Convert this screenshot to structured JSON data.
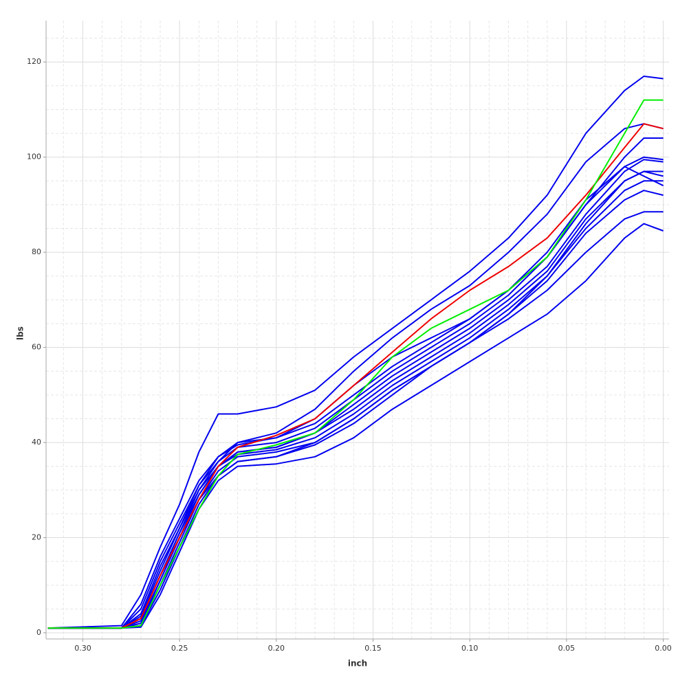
{
  "chart_data": {
    "type": "line",
    "x_label": "inch",
    "y_label": "lbs",
    "xlim": [
      0.319,
      -0.003
    ],
    "ylim": [
      -1.3,
      128.7
    ],
    "xticks": [
      {
        "value": 0.3,
        "label": "0.30"
      },
      {
        "value": 0.25,
        "label": "0.25"
      },
      {
        "value": 0.2,
        "label": "0.20"
      },
      {
        "value": 0.15,
        "label": "0.15"
      },
      {
        "value": 0.1,
        "label": "0.10"
      },
      {
        "value": 0.05,
        "label": "0.05"
      },
      {
        "value": 0,
        "label": "0.00"
      }
    ],
    "yticks": [
      0,
      20,
      40,
      60,
      80,
      100,
      120
    ],
    "xminorticks": [
      0.31,
      0.29,
      0.28,
      0.27,
      0.26,
      0.24,
      0.23,
      0.22,
      0.21,
      0.19,
      0.18,
      0.17,
      0.16,
      0.14,
      0.13,
      0.12,
      0.11,
      0.09,
      0.08,
      0.07,
      0.06,
      0.04,
      0.03,
      0.02,
      0.01
    ],
    "yminorticks": [
      5,
      10,
      15,
      25,
      30,
      35,
      45,
      50,
      55,
      65,
      70,
      75,
      85,
      90,
      95,
      105,
      110,
      115,
      125
    ],
    "grid": true,
    "minor_grid": true,
    "x": [
      0.318,
      0.28,
      0.27,
      0.26,
      0.25,
      0.24,
      0.23,
      0.22,
      0.2,
      0.18,
      0.16,
      0.14,
      0.12,
      0.1,
      0.08,
      0.06,
      0.04,
      0.02,
      0.01,
      0.0
    ],
    "series": [
      {
        "color": "#0000ee",
        "values": [
          1,
          1.5,
          8,
          18,
          27,
          38,
          46,
          46,
          47.5,
          51,
          58,
          64,
          70,
          76,
          83,
          92,
          105,
          114,
          117,
          116.5
        ]
      },
      {
        "color": "#0000ee",
        "values": [
          1,
          1,
          4,
          14,
          22,
          30,
          36,
          40,
          42,
          47,
          55,
          62,
          68,
          73,
          80,
          88,
          99,
          106,
          107,
          106
        ]
      },
      {
        "color": "#0000ee",
        "values": [
          1,
          1,
          1.2,
          8,
          17,
          26,
          32,
          35,
          35.5,
          37,
          41,
          47,
          52,
          57,
          62,
          67,
          74,
          83,
          86,
          84.5
        ]
      },
      {
        "color": "#0000ee",
        "values": [
          1,
          1,
          2,
          10,
          19,
          28,
          34,
          37,
          38,
          40,
          45,
          51,
          56,
          61,
          66,
          72,
          80,
          87,
          88.5,
          88.5
        ]
      },
      {
        "color": "#0000ee",
        "values": [
          1,
          1,
          3,
          12,
          21,
          30,
          35,
          37.5,
          38.5,
          41,
          46,
          52,
          57,
          62,
          68,
          75,
          86,
          95,
          97,
          96
        ]
      },
      {
        "color": "#0000ee",
        "values": [
          1,
          1,
          2,
          11,
          20,
          29,
          35,
          38,
          39,
          42,
          48,
          54,
          59,
          64,
          70,
          77,
          88,
          97,
          99.5,
          99
        ]
      },
      {
        "color": "#0000ee",
        "values": [
          1,
          1,
          5,
          15,
          23,
          31,
          36,
          39,
          40,
          43,
          49,
          55,
          60,
          65,
          71,
          79,
          90,
          98,
          100,
          99.5
        ]
      },
      {
        "color": "#0000ee",
        "values": [
          1,
          1,
          2.5,
          11,
          20,
          28,
          33,
          36,
          37,
          39.5,
          44,
          50,
          56,
          61,
          67,
          74,
          84,
          91,
          93,
          92
        ]
      },
      {
        "color": "#0000ee",
        "values": [
          1,
          1,
          3.5,
          13,
          22,
          31,
          37,
          40,
          41,
          44,
          50,
          56,
          61,
          66,
          72,
          80,
          91,
          98,
          96,
          94
        ]
      },
      {
        "color": "#0000ee",
        "values": [
          1,
          1,
          1.5,
          9,
          18,
          27,
          33,
          36,
          37,
          40,
          45,
          51,
          56,
          61,
          67,
          75,
          85,
          93,
          95,
          95
        ]
      },
      {
        "color": "#0000ee",
        "values": [
          1,
          1,
          6,
          16,
          24,
          32,
          37,
          39.5,
          41,
          45,
          52,
          58,
          62,
          66,
          72,
          79,
          90,
          100,
          104,
          104
        ]
      },
      {
        "color": "#0000ee",
        "values": [
          1,
          1,
          3,
          12,
          21,
          29,
          35,
          38,
          39,
          42,
          47,
          53,
          58,
          63,
          69,
          76,
          87,
          95,
          97,
          97
        ]
      },
      {
        "color": "#ee0000",
        "values": [
          1,
          1,
          3,
          12,
          20,
          28,
          35,
          39,
          41.5,
          45,
          52,
          59,
          66,
          72,
          77,
          83,
          92,
          102,
          107,
          106
        ]
      },
      {
        "color": "#00ee00",
        "values": [
          1,
          1,
          1.5,
          10,
          18,
          26,
          33,
          37.5,
          39.5,
          42,
          49,
          58,
          64,
          68,
          72,
          79,
          91,
          105,
          112,
          112
        ]
      }
    ]
  }
}
